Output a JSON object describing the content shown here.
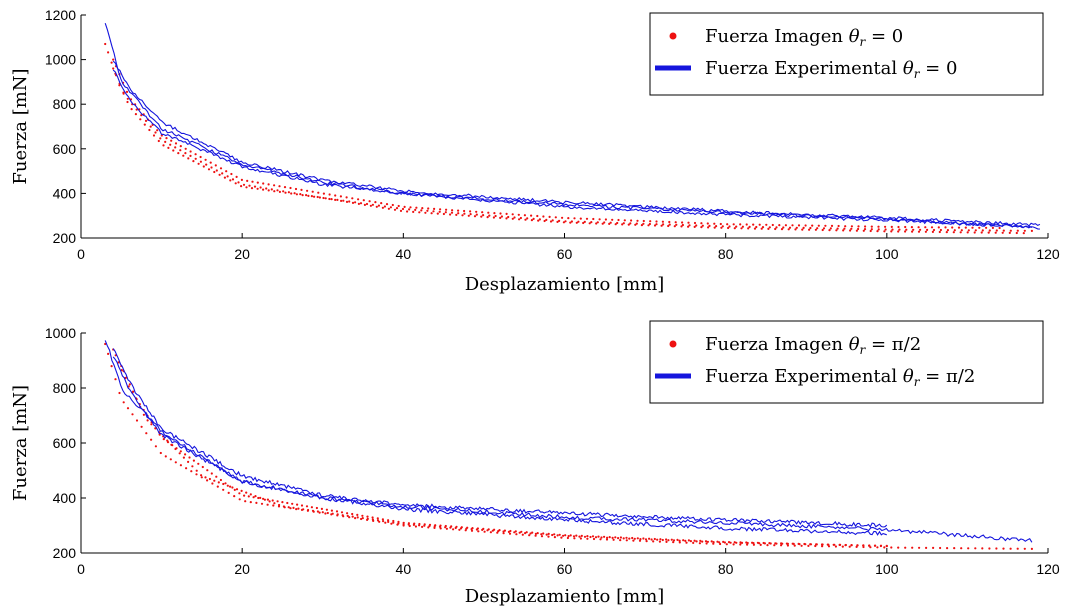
{
  "colors": {
    "image": "#ee1111",
    "experimental": "#1515dd",
    "axis": "#000000",
    "background": "#ffffff"
  },
  "chart_data": [
    {
      "type": "scatter",
      "xlabel": "Desplazamiento [mm]",
      "ylabel": "Fuerza [mN]",
      "xlim": [
        0,
        120
      ],
      "ylim": [
        200,
        1200
      ],
      "xticks": [
        "0",
        "20",
        "40",
        "60",
        "80",
        "100",
        "120"
      ],
      "yticks": [
        "200",
        "400",
        "600",
        "800",
        "1000",
        "1200"
      ],
      "grid": false,
      "legend_position": "top-right",
      "legend": [
        {
          "text": "Fuerza Imagen",
          "math": "θ",
          "sub": "r",
          "eq": " = 0",
          "marker": "dot"
        },
        {
          "text": "Fuerza Experimental",
          "math": "θ",
          "sub": "r",
          "eq": " = 0",
          "marker": "line"
        }
      ],
      "series": [
        {
          "name": "Fuerza Imagen θr = 0",
          "kind": "scatter",
          "x": [
            3,
            5,
            10,
            20,
            40,
            60,
            80,
            100,
            117
          ],
          "y": [
            1070,
            860,
            640,
            440,
            320,
            270,
            245,
            230,
            222
          ]
        },
        {
          "name": "Fuerza Imagen θr = 0",
          "kind": "scatter",
          "x": [
            4,
            6,
            10,
            20,
            40,
            60,
            80,
            100,
            114
          ],
          "y": [
            1000,
            830,
            660,
            460,
            340,
            290,
            262,
            250,
            245
          ]
        },
        {
          "name": "Fuerza Imagen θr = 0",
          "kind": "scatter",
          "x": [
            4,
            6,
            10,
            20,
            40,
            60,
            80,
            100,
            118
          ],
          "y": [
            960,
            790,
            620,
            430,
            330,
            275,
            252,
            238,
            232
          ]
        },
        {
          "name": "Fuerza Experimental θr = 0",
          "kind": "line",
          "x": [
            3,
            5,
            10,
            20,
            30,
            40,
            60,
            80,
            100,
            119
          ],
          "y": [
            1170,
            900,
            690,
            530,
            450,
            400,
            350,
            315,
            285,
            245
          ]
        },
        {
          "name": "Fuerza Experimental θr = 0",
          "kind": "line",
          "x": [
            4,
            6,
            10,
            20,
            30,
            40,
            60,
            80,
            100,
            119
          ],
          "y": [
            1000,
            870,
            720,
            540,
            460,
            410,
            360,
            320,
            290,
            258
          ]
        },
        {
          "name": "Fuerza Experimental θr = 0",
          "kind": "line",
          "x": [
            4,
            6,
            10,
            20,
            30,
            40,
            60,
            80,
            100,
            118
          ],
          "y": [
            960,
            820,
            670,
            520,
            440,
            400,
            340,
            305,
            280,
            250
          ]
        }
      ]
    },
    {
      "type": "scatter",
      "xlabel": "Desplazamiento [mm]",
      "ylabel": "Fuerza [mN]",
      "xlim": [
        0,
        120
      ],
      "ylim": [
        200,
        1000
      ],
      "xticks": [
        "0",
        "20",
        "40",
        "60",
        "80",
        "100",
        "120"
      ],
      "yticks": [
        "200",
        "400",
        "600",
        "800",
        "1000"
      ],
      "grid": false,
      "legend_position": "top-right",
      "legend": [
        {
          "text": "Fuerza Imagen",
          "math": "θ",
          "sub": "r",
          "eq": " = π/2",
          "marker": "dot"
        },
        {
          "text": "Fuerza Experimental",
          "math": "θ",
          "sub": "r",
          "eq": " = π/2",
          "marker": "line"
        }
      ],
      "series": [
        {
          "name": "Fuerza Imagen θr = π/2",
          "kind": "scatter",
          "x": [
            3,
            5,
            10,
            20,
            40,
            60,
            80,
            100,
            118
          ],
          "y": [
            960,
            760,
            560,
            390,
            300,
            255,
            232,
            220,
            215
          ]
        },
        {
          "name": "Fuerza Imagen θr = π/2",
          "kind": "scatter",
          "x": [
            4,
            6,
            10,
            20,
            40,
            60,
            80,
            100
          ],
          "y": [
            940,
            800,
            620,
            410,
            310,
            265,
            240,
            225
          ]
        },
        {
          "name": "Fuerza Imagen θr = π/2",
          "kind": "scatter",
          "x": [
            5,
            8,
            15,
            25,
            40,
            60,
            80,
            100
          ],
          "y": [
            880,
            690,
            480,
            370,
            305,
            262,
            238,
            226
          ]
        },
        {
          "name": "Fuerza Experimental θr = π/2",
          "kind": "line",
          "x": [
            3,
            5,
            10,
            20,
            30,
            40,
            60,
            80,
            100,
            118
          ],
          "y": [
            980,
            800,
            640,
            460,
            400,
            370,
            330,
            310,
            285,
            245
          ]
        },
        {
          "name": "Fuerza Experimental θr = π/2",
          "kind": "line",
          "x": [
            4,
            6,
            10,
            20,
            30,
            40,
            60,
            80,
            100
          ],
          "y": [
            950,
            820,
            650,
            480,
            410,
            375,
            345,
            320,
            300
          ]
        },
        {
          "name": "Fuerza Experimental θr = π/2",
          "kind": "line",
          "x": [
            4,
            6,
            10,
            20,
            30,
            40,
            60,
            80,
            100
          ],
          "y": [
            920,
            790,
            630,
            460,
            400,
            360,
            320,
            290,
            270
          ]
        }
      ]
    }
  ]
}
